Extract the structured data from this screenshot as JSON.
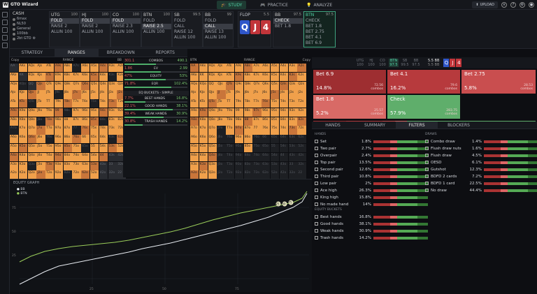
{
  "app": {
    "name": "GTO Wizard",
    "logo_letter": "W"
  },
  "nav": [
    {
      "label": "STUDY",
      "icon": "graduation-cap-icon",
      "active": true
    },
    {
      "label": "PRACTICE",
      "icon": "gamepad-icon",
      "active": false
    },
    {
      "label": "ANALYZE",
      "icon": "lightbulb-icon",
      "active": false
    }
  ],
  "topright": {
    "upload": "UPLOAD"
  },
  "cash": {
    "title": "CASH",
    "rows": [
      "6max",
      "NL50",
      "General",
      "100bb",
      "2bt GTO"
    ]
  },
  "spots": [
    {
      "pos": "UTG",
      "stack": "100",
      "actions": [
        "FOLD",
        "RAISE 2",
        "ALLIN 100"
      ],
      "sel": 0
    },
    {
      "pos": "HJ",
      "stack": "100",
      "actions": [
        "FOLD",
        "RAISE 2",
        "ALLIN 100"
      ],
      "sel": 0
    },
    {
      "pos": "CO",
      "stack": "100",
      "actions": [
        "FOLD",
        "RAISE 2.3",
        "ALLIN 100"
      ],
      "sel": 0
    },
    {
      "pos": "BTN",
      "stack": "100",
      "actions": [
        "FOLD",
        "RAISE 2.5",
        "ALLIN 100"
      ],
      "sel": 1
    },
    {
      "pos": "SB",
      "stack": "99.5",
      "actions": [
        "FOLD",
        "CALL",
        "RAISE 12",
        "ALLIN 100"
      ],
      "sel": -1
    },
    {
      "pos": "BB",
      "stack": "99",
      "actions": [
        "FOLD",
        "CALL",
        "RAISE 13",
        "ALLIN 100"
      ],
      "sel": 1
    },
    {
      "pos": "BB",
      "stack": "97.5",
      "actions": [
        "CHECK",
        "BET 1.8"
      ],
      "sel": 0
    },
    {
      "pos": "BTN",
      "stack": "97.5",
      "actions": [
        "CHECK",
        "BET 1.8",
        "BET 2.75",
        "BET 4.1",
        "BET 6.9"
      ],
      "sel": -1
    }
  ],
  "flop": {
    "label": "FLOP",
    "pot": "5.5",
    "cards": [
      {
        "rank": "Q",
        "color": "#2f56c9"
      },
      {
        "rank": "J",
        "color": "#c2353a"
      },
      {
        "rank": "4",
        "color": "#c2353a"
      }
    ]
  },
  "tabs": [
    {
      "label": "STRATEGY",
      "active": false
    },
    {
      "label": "RANGES",
      "active": true
    },
    {
      "label": "BREAKDOWN",
      "active": false
    },
    {
      "label": "REPORTS",
      "active": false
    }
  ],
  "left_range": {
    "copy": "Copy",
    "range": "RANGE",
    "bb": "BB"
  },
  "right_range": {
    "btn": "BTN",
    "range": "RANGE",
    "copy": "Copy"
  },
  "grid_labels": [
    "AA",
    "AKs",
    "AQs",
    "AJs",
    "ATs",
    "A9s",
    "A8s",
    "A7s",
    "A6s",
    "A5s",
    "A4s",
    "A3s",
    "A2s",
    "AKo",
    "KK",
    "KQs",
    "KJs",
    "KTs",
    "K9s",
    "K8s",
    "K7s",
    "K6s",
    "K5s",
    "K4s",
    "K3s",
    "K2s",
    "AQo",
    "KQo",
    "QQ",
    "QJs",
    "QTs",
    "Q9s",
    "Q8s",
    "Q7s",
    "Q6s",
    "Q5s",
    "Q4s",
    "Q3s",
    "Q2s",
    "AJo",
    "KJo",
    "QJo",
    "JJ",
    "JTs",
    "J9s",
    "J8s",
    "J7s",
    "J6s",
    "J5s",
    "J4s",
    "J3s",
    "J2s",
    "ATo",
    "KTo",
    "QTo",
    "JTo",
    "TT",
    "T9s",
    "T8s",
    "T7s",
    "T6s",
    "T5s",
    "T4s",
    "T3s",
    "T2s",
    "A9o",
    "K9o",
    "Q9o",
    "J9o",
    "T9o",
    "99",
    "98s",
    "97s",
    "96s",
    "95s",
    "94s",
    "93s",
    "92s",
    "A8o",
    "K8o",
    "Q8o",
    "J8o",
    "T8o",
    "98o",
    "88",
    "87s",
    "86s",
    "85s",
    "84s",
    "83s",
    "82s",
    "A7o",
    "K7o",
    "Q7o",
    "J7o",
    "T7o",
    "97o",
    "87o",
    "77",
    "76s",
    "75s",
    "74s",
    "73s",
    "72s",
    "A6o",
    "K6o",
    "Q6o",
    "J6o",
    "T6o",
    "96o",
    "86o",
    "76o",
    "66",
    "65s",
    "64s",
    "63s",
    "62s",
    "A5o",
    "K5o",
    "Q5o",
    "J5o",
    "T5o",
    "95o",
    "85o",
    "75o",
    "65o",
    "55",
    "54s",
    "53s",
    "52s",
    "A4o",
    "K4o",
    "Q4o",
    "J4o",
    "T4o",
    "94o",
    "84o",
    "74o",
    "64o",
    "54o",
    "44",
    "43s",
    "42s",
    "A3o",
    "K3o",
    "Q3o",
    "J3o",
    "T3o",
    "93o",
    "83o",
    "73o",
    "63o",
    "53o",
    "43o",
    "33",
    "32s",
    "A2o",
    "K2o",
    "Q2o",
    "J2o",
    "T2o",
    "92o",
    "82o",
    "72o",
    "62o",
    "52o",
    "42o",
    "32o",
    "22"
  ],
  "stats": [
    {
      "left": "301.1",
      "label": "COMBOS",
      "right": "490.1"
    },
    {
      "left": "1.86",
      "label": "EV",
      "right": "2.99"
    },
    {
      "left": "47%",
      "label": "EQUITY",
      "right": "53%"
    },
    {
      "left": "71.8%",
      "label": "EQR",
      "right": "102.4%"
    }
  ],
  "eq_buckets_label": "EQ BUCKETS - SIMPLE",
  "buckets": [
    {
      "left": "7.7%",
      "label": "BEST HANDS",
      "right": "16.8%"
    },
    {
      "left": "22.1%",
      "label": "GOOD HANDS",
      "right": "38.1%"
    },
    {
      "left": "39.4%",
      "label": "WEAK HANDS",
      "right": "30.9%"
    },
    {
      "left": "30.8%",
      "label": "TRASH HANDS",
      "right": "14.2%"
    }
  ],
  "graph": {
    "title": "EQUITY GRAPH",
    "series": [
      "BB",
      "BTN"
    ],
    "y_ticks": [
      "75",
      "50",
      "25"
    ],
    "x_ticks": [
      "25",
      "50",
      "75"
    ],
    "markers": [
      "25",
      "50",
      "75"
    ]
  },
  "positions": [
    {
      "p": "UTG",
      "s": "100"
    },
    {
      "p": "HJ",
      "s": "100"
    },
    {
      "p": "CO",
      "s": "100"
    },
    {
      "p": "BTN",
      "s": "97.5"
    },
    {
      "p": "SB",
      "s": "99.5"
    },
    {
      "p": "BB",
      "s": "97.5"
    }
  ],
  "pot": {
    "label": "5.5 BB",
    "sub": "5.5 BB"
  },
  "actions": [
    {
      "name": "Bet 6.9",
      "pct": "14.8%",
      "combos": "72.56",
      "combos_label": "combos",
      "color": "#9e2e31"
    },
    {
      "name": "Bet 4.1",
      "pct": "16.2%",
      "combos": "79.6",
      "combos_label": "combos",
      "color": "#b73a3d"
    },
    {
      "name": "Bet 2.75",
      "pct": "5.8%",
      "combos": "28.53",
      "combos_label": "combos",
      "color": "#c94e4f"
    },
    {
      "name": "Bet 1.8",
      "pct": "5.2%",
      "combos": "25.57",
      "combos_label": "combos",
      "color": "#d86a66"
    },
    {
      "name": "Check",
      "pct": "57.9%",
      "combos": "283.75",
      "combos_label": "combos",
      "color": "#5fae6b"
    }
  ],
  "rtabs": [
    {
      "label": "HANDS",
      "active": false
    },
    {
      "label": "SUMMARY",
      "active": false
    },
    {
      "label": "FILTERS",
      "active": true
    },
    {
      "label": "BLOCKERS",
      "active": false
    }
  ],
  "hands_section": "HANDS",
  "draws_section": "DRAWS",
  "eqb_section": "EQUITY BUCKETS",
  "hands": [
    {
      "n": "Set",
      "p": "1.8%"
    },
    {
      "n": "Two pair",
      "p": "2.7%"
    },
    {
      "n": "Overpair",
      "p": "2.4%"
    },
    {
      "n": "Top pair",
      "p": "13.5%"
    },
    {
      "n": "Second pair",
      "p": "12.6%"
    },
    {
      "n": "Third pair",
      "p": "10.8%"
    },
    {
      "n": "Low pair",
      "p": "2%"
    },
    {
      "n": "Ace high",
      "p": "26.3%"
    },
    {
      "n": "King high",
      "p": "15.8%"
    },
    {
      "n": "No made hand",
      "p": "14%"
    }
  ],
  "draws": [
    {
      "n": "Combo draw",
      "p": "1.4%"
    },
    {
      "n": "Flush draw nuts",
      "p": "1.6%"
    },
    {
      "n": "Flush draw",
      "p": "4.5%"
    },
    {
      "n": "OESD",
      "p": "6.1%"
    },
    {
      "n": "Gutshot",
      "p": "12.3%"
    },
    {
      "n": "BDFD 2 cards",
      "p": "7.2%"
    },
    {
      "n": "BDFD 1 card",
      "p": "22.5%"
    },
    {
      "n": "No draw",
      "p": "44.4%"
    }
  ],
  "eqb": [
    {
      "n": "Best hands",
      "p": "16.8%"
    },
    {
      "n": "Good hands",
      "p": "38.1%"
    },
    {
      "n": "Weak hands",
      "p": "30.9%"
    },
    {
      "n": "Trash hands",
      "p": "14.2%"
    }
  ]
}
